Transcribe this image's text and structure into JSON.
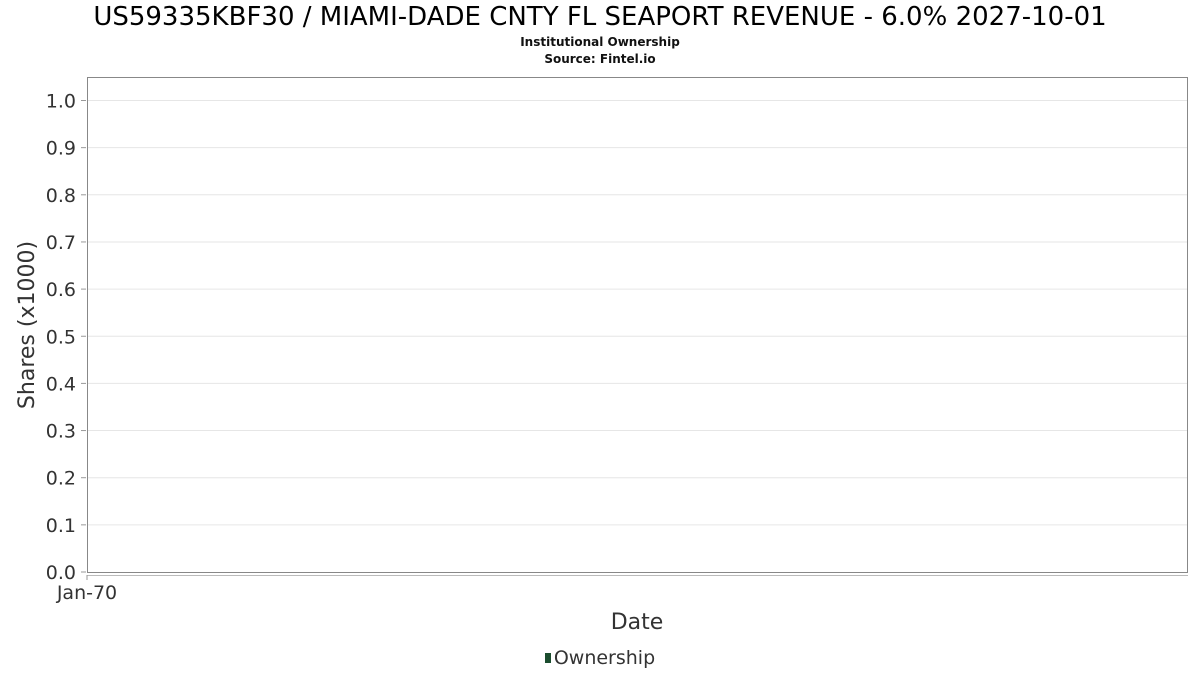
{
  "chart_data": {
    "type": "line",
    "title": "US59335KBF30 / MIAMI-DADE CNTY FL SEAPORT REVENUE - 6.0% 2027-10-01",
    "subtitle_lines": [
      "Institutional Ownership",
      "Source: Fintel.io"
    ],
    "xlabel": "Date",
    "ylabel": "Shares (x1000)",
    "x_tick_labels": [
      "Jan-70"
    ],
    "y_ticks": [
      0.0,
      0.1,
      0.2,
      0.3,
      0.4,
      0.5,
      0.6,
      0.7,
      0.8,
      0.9,
      1.0
    ],
    "y_tick_labels": [
      "0.0",
      "0.1",
      "0.2",
      "0.3",
      "0.4",
      "0.5",
      "0.6",
      "0.7",
      "0.8",
      "0.9",
      "1.0"
    ],
    "ylim": [
      0.0,
      1.0
    ],
    "grid": true,
    "legend_position": "bottom-center",
    "series": [
      {
        "name": "Ownership",
        "color": "#1b4d2e",
        "x": [],
        "y": []
      }
    ]
  }
}
